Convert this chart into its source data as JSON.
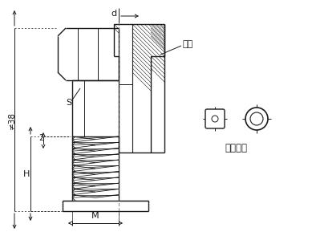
{
  "bg_color": "#ffffff",
  "line_color": "#1a1a1a",
  "label_d": "d",
  "label_s": "S",
  "label_38": "≠38",
  "label_2": "2",
  "label_H": "H",
  "label_M": "M",
  "label_kashe": "卡套",
  "label_gudingkashe": "固定卡套"
}
